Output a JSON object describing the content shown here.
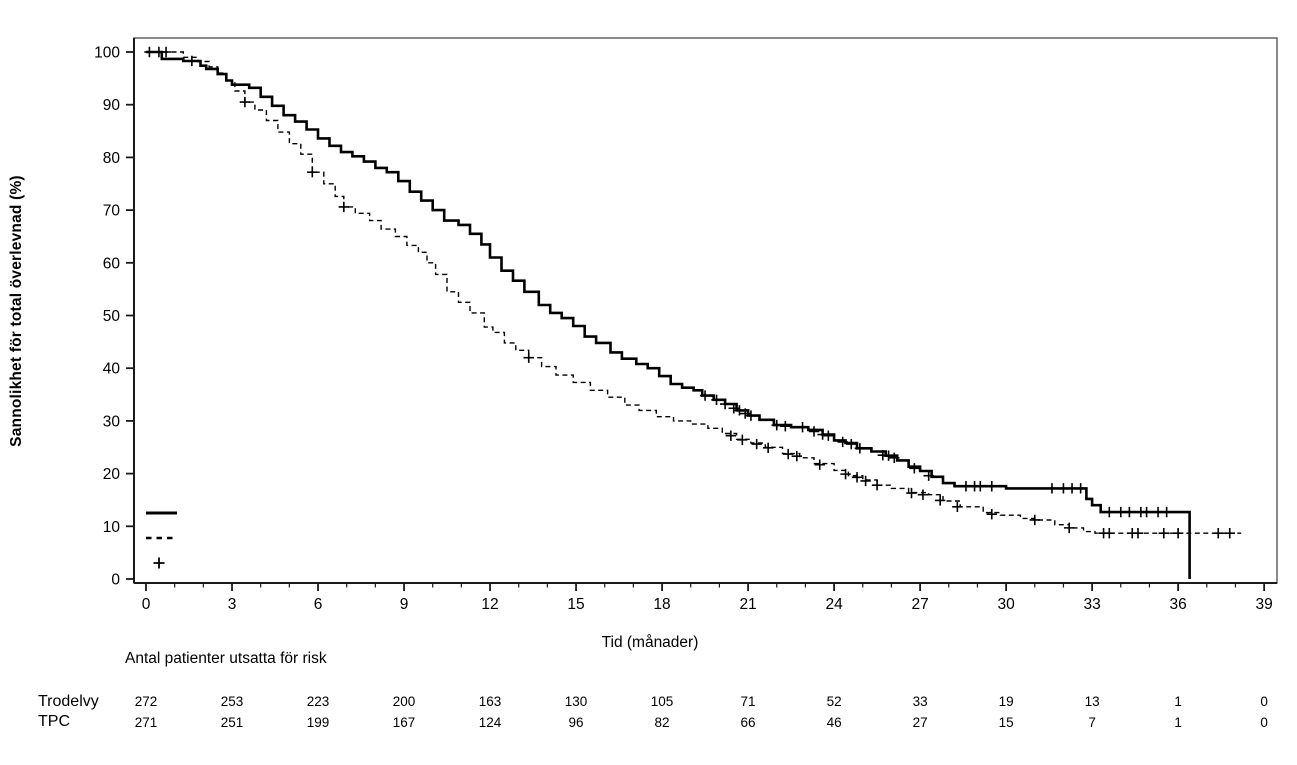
{
  "figure": {
    "y_axis_label": "Sannolikhet för total överlevnad (%)",
    "x_axis_label": "Tid (månader)",
    "colors": {
      "curve": "#000000",
      "frame": "#58585a",
      "axis": "#1a1a1a",
      "text": "#000000"
    }
  },
  "chart_data": {
    "type": "line",
    "subtype": "kaplan-meier-step-curve",
    "title": "",
    "xlabel": "Tid (månader)",
    "ylabel": "Sannolikhet för total överlevnad (%)",
    "xlim": [
      0,
      39.6
    ],
    "ylim": [
      0,
      100
    ],
    "x_major_ticks": [
      0,
      3,
      6,
      9,
      12,
      15,
      18,
      21,
      24,
      27,
      30,
      33,
      36,
      39
    ],
    "x_minor_tick_step": 1,
    "y_ticks": [
      0,
      10,
      20,
      30,
      40,
      50,
      60,
      70,
      80,
      90,
      100
    ],
    "grid": false,
    "legend": {
      "position": "inside-bottom-left",
      "items": [
        {
          "symbol": "solid-line",
          "series": "Trodelvy"
        },
        {
          "symbol": "dashed-line",
          "series": "TPC"
        },
        {
          "symbol": "plus-censor-mark",
          "series": "censurerad"
        }
      ]
    },
    "series": [
      {
        "name": "Trodelvy",
        "style": "solid",
        "color": "#000000",
        "points": [
          [
            0,
            100
          ],
          [
            0.5,
            100
          ],
          [
            0.55,
            98.7
          ],
          [
            1.3,
            98.3
          ],
          [
            1.9,
            97.4
          ],
          [
            2.1,
            96.8
          ],
          [
            2.5,
            95.8
          ],
          [
            2.8,
            94.6
          ],
          [
            3.0,
            93.8
          ],
          [
            3.6,
            93.2
          ],
          [
            4.0,
            91.5
          ],
          [
            4.4,
            89.8
          ],
          [
            4.8,
            88.0
          ],
          [
            5.2,
            86.8
          ],
          [
            5.6,
            85.3
          ],
          [
            6.0,
            83.6
          ],
          [
            6.4,
            82.2
          ],
          [
            6.8,
            81.0
          ],
          [
            7.2,
            80.2
          ],
          [
            7.6,
            79.2
          ],
          [
            8.0,
            78.0
          ],
          [
            8.4,
            77.2
          ],
          [
            8.8,
            75.5
          ],
          [
            9.2,
            73.5
          ],
          [
            9.6,
            71.8
          ],
          [
            10.0,
            70.0
          ],
          [
            10.4,
            68.0
          ],
          [
            10.9,
            67.2
          ],
          [
            11.3,
            65.5
          ],
          [
            11.7,
            63.5
          ],
          [
            12.0,
            61.0
          ],
          [
            12.4,
            58.5
          ],
          [
            12.8,
            56.6
          ],
          [
            13.2,
            54.5
          ],
          [
            13.7,
            52.0
          ],
          [
            14.1,
            50.5
          ],
          [
            14.5,
            49.5
          ],
          [
            14.9,
            48.0
          ],
          [
            15.3,
            46.0
          ],
          [
            15.7,
            44.8
          ],
          [
            16.2,
            43.0
          ],
          [
            16.6,
            41.8
          ],
          [
            17.1,
            40.8
          ],
          [
            17.5,
            40.0
          ],
          [
            17.9,
            38.5
          ],
          [
            18.3,
            37.0
          ],
          [
            18.7,
            36.3
          ],
          [
            19.1,
            35.8
          ],
          [
            19.4,
            34.8
          ],
          [
            19.8,
            34.0
          ],
          [
            20.2,
            33.2
          ],
          [
            20.6,
            32.0
          ],
          [
            21.0,
            31.0
          ],
          [
            21.4,
            30.2
          ],
          [
            21.9,
            29.2
          ],
          [
            22.5,
            28.8
          ],
          [
            23.1,
            28.3
          ],
          [
            23.6,
            27.4
          ],
          [
            24.0,
            26.3
          ],
          [
            24.4,
            25.8
          ],
          [
            24.8,
            24.8
          ],
          [
            25.3,
            24.2
          ],
          [
            25.8,
            23.4
          ],
          [
            26.2,
            22.5
          ],
          [
            26.6,
            21.3
          ],
          [
            27.0,
            20.5
          ],
          [
            27.4,
            19.4
          ],
          [
            27.8,
            18.2
          ],
          [
            28.2,
            17.6
          ],
          [
            30.0,
            17.2
          ],
          [
            32.8,
            15.2
          ],
          [
            33.0,
            14.0
          ],
          [
            33.3,
            12.7
          ],
          [
            36.4,
            12.7
          ],
          [
            36.4,
            0
          ]
        ],
        "censor_marks": [
          [
            0.12,
            100
          ],
          [
            0.45,
            100
          ],
          [
            1.6,
            98.3
          ],
          [
            19.5,
            34.8
          ],
          [
            19.9,
            34.0
          ],
          [
            20.2,
            33.2
          ],
          [
            20.5,
            32.4
          ],
          [
            20.7,
            32.0
          ],
          [
            20.9,
            31.4
          ],
          [
            21.1,
            31.0
          ],
          [
            22.0,
            29.2
          ],
          [
            22.3,
            29.0
          ],
          [
            22.9,
            28.8
          ],
          [
            23.3,
            28.0
          ],
          [
            23.6,
            27.4
          ],
          [
            23.8,
            27.2
          ],
          [
            24.3,
            26.0
          ],
          [
            24.6,
            25.6
          ],
          [
            24.9,
            24.8
          ],
          [
            25.7,
            23.5
          ],
          [
            25.9,
            23.4
          ],
          [
            26.1,
            23.0
          ],
          [
            26.8,
            21.0
          ],
          [
            27.3,
            19.6
          ],
          [
            28.6,
            17.6
          ],
          [
            28.9,
            17.6
          ],
          [
            29.1,
            17.6
          ],
          [
            29.5,
            17.6
          ],
          [
            31.6,
            17.2
          ],
          [
            32.0,
            17.2
          ],
          [
            32.3,
            17.2
          ],
          [
            32.6,
            17.2
          ],
          [
            33.6,
            12.7
          ],
          [
            34.0,
            12.7
          ],
          [
            34.3,
            12.7
          ],
          [
            34.7,
            12.7
          ],
          [
            34.9,
            12.7
          ],
          [
            35.3,
            12.7
          ],
          [
            35.6,
            12.7
          ]
        ]
      },
      {
        "name": "TPC",
        "style": "dashed",
        "color": "#000000",
        "points": [
          [
            0,
            100
          ],
          [
            1.2,
            100
          ],
          [
            1.3,
            99.0
          ],
          [
            1.8,
            98.2
          ],
          [
            2.2,
            97.2
          ],
          [
            2.5,
            96.0
          ],
          [
            2.8,
            94.6
          ],
          [
            3.1,
            92.6
          ],
          [
            3.45,
            90.5
          ],
          [
            3.8,
            89.0
          ],
          [
            4.2,
            87.0
          ],
          [
            4.6,
            84.8
          ],
          [
            5.0,
            82.6
          ],
          [
            5.4,
            80.6
          ],
          [
            5.8,
            77.2
          ],
          [
            6.2,
            75.0
          ],
          [
            6.6,
            72.6
          ],
          [
            6.9,
            70.6
          ],
          [
            7.3,
            69.4
          ],
          [
            7.8,
            68.0
          ],
          [
            8.2,
            66.4
          ],
          [
            8.7,
            65.0
          ],
          [
            9.1,
            63.3
          ],
          [
            9.5,
            62.0
          ],
          [
            9.8,
            60.0
          ],
          [
            10.1,
            57.8
          ],
          [
            10.5,
            54.5
          ],
          [
            10.9,
            52.5
          ],
          [
            11.3,
            50.5
          ],
          [
            11.8,
            47.8
          ],
          [
            12.1,
            46.8
          ],
          [
            12.5,
            44.8
          ],
          [
            12.9,
            43.4
          ],
          [
            13.35,
            42.0
          ],
          [
            13.8,
            40.3
          ],
          [
            14.3,
            38.7
          ],
          [
            14.9,
            37.3
          ],
          [
            15.5,
            35.8
          ],
          [
            16.1,
            34.5
          ],
          [
            16.7,
            33.0
          ],
          [
            17.2,
            32.0
          ],
          [
            17.8,
            30.8
          ],
          [
            18.4,
            30.0
          ],
          [
            19.0,
            29.4
          ],
          [
            19.6,
            28.6
          ],
          [
            20.1,
            27.6
          ],
          [
            20.6,
            26.5
          ],
          [
            21.1,
            25.8
          ],
          [
            21.6,
            25.0
          ],
          [
            22.2,
            23.8
          ],
          [
            22.8,
            23.0
          ],
          [
            23.3,
            21.9
          ],
          [
            24.0,
            20.6
          ],
          [
            24.5,
            19.6
          ],
          [
            25.0,
            18.8
          ],
          [
            25.5,
            17.8
          ],
          [
            26.0,
            17.2
          ],
          [
            26.6,
            16.4
          ],
          [
            27.3,
            16.0
          ],
          [
            27.8,
            14.8
          ],
          [
            28.4,
            13.7
          ],
          [
            29.2,
            12.6
          ],
          [
            29.8,
            12.1
          ],
          [
            30.5,
            11.5
          ],
          [
            31.0,
            11.2
          ],
          [
            31.7,
            10.3
          ],
          [
            32.2,
            9.7
          ],
          [
            32.7,
            9.0
          ],
          [
            33.1,
            8.7
          ],
          [
            38.2,
            8.7
          ]
        ],
        "censor_marks": [
          [
            0.7,
            100
          ],
          [
            3.45,
            90.5
          ],
          [
            5.8,
            77.2
          ],
          [
            6.9,
            70.6
          ],
          [
            13.35,
            42.0
          ],
          [
            20.4,
            27.2
          ],
          [
            20.8,
            26.4
          ],
          [
            21.3,
            25.6
          ],
          [
            21.7,
            24.9
          ],
          [
            22.4,
            23.7
          ],
          [
            22.7,
            23.3
          ],
          [
            23.5,
            21.7
          ],
          [
            24.4,
            19.9
          ],
          [
            24.8,
            19.3
          ],
          [
            25.1,
            18.6
          ],
          [
            25.5,
            17.8
          ],
          [
            26.7,
            16.3
          ],
          [
            27.1,
            16.0
          ],
          [
            27.7,
            14.9
          ],
          [
            28.3,
            13.7
          ],
          [
            29.5,
            12.3
          ],
          [
            31.0,
            11.2
          ],
          [
            32.2,
            9.7
          ],
          [
            33.4,
            8.7
          ],
          [
            33.6,
            8.7
          ],
          [
            34.4,
            8.7
          ],
          [
            34.6,
            8.7
          ],
          [
            35.5,
            8.7
          ],
          [
            36.0,
            8.7
          ],
          [
            37.4,
            8.7
          ],
          [
            37.8,
            8.7
          ]
        ]
      }
    ]
  },
  "risk_table": {
    "title": "Antal patienter utsatta för risk",
    "time_points": [
      0,
      3,
      6,
      9,
      12,
      15,
      18,
      21,
      24,
      27,
      30,
      33,
      36,
      39
    ],
    "rows": [
      {
        "label": "Trodelvy",
        "counts": [
          272,
          253,
          223,
          200,
          163,
          130,
          105,
          71,
          52,
          33,
          19,
          13,
          1,
          0
        ]
      },
      {
        "label": "TPC",
        "counts": [
          271,
          251,
          199,
          167,
          124,
          96,
          82,
          66,
          46,
          27,
          15,
          7,
          1,
          0
        ]
      }
    ]
  }
}
